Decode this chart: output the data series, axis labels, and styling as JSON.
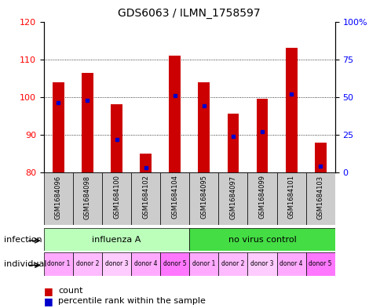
{
  "title": "GDS6063 / ILMN_1758597",
  "samples": [
    "GSM1684096",
    "GSM1684098",
    "GSM1684100",
    "GSM1684102",
    "GSM1684104",
    "GSM1684095",
    "GSM1684097",
    "GSM1684099",
    "GSM1684101",
    "GSM1684103"
  ],
  "count_values": [
    104,
    106.5,
    98,
    85,
    111,
    104,
    95.5,
    99.5,
    113,
    88
  ],
  "count_base": 80,
  "percentile_values": [
    46,
    48,
    22,
    3,
    51,
    44,
    24,
    27,
    52,
    4
  ],
  "infection_groups": [
    {
      "label": "influenza A",
      "start": 0,
      "end": 5,
      "color": "#bbffbb"
    },
    {
      "label": "no virus control",
      "start": 5,
      "end": 10,
      "color": "#44dd44"
    }
  ],
  "individual_labels": [
    "donor 1",
    "donor 2",
    "donor 3",
    "donor 4",
    "donor 5",
    "donor 1",
    "donor 2",
    "donor 3",
    "donor 4",
    "donor 5"
  ],
  "individual_colors": [
    "#ffaaff",
    "#ffbbff",
    "#ffccff",
    "#ffaaff",
    "#ff77ff",
    "#ffaaff",
    "#ffbbff",
    "#ffccff",
    "#ffaaff",
    "#ff77ff"
  ],
  "ylim_left": [
    80,
    120
  ],
  "ylim_right": [
    0,
    100
  ],
  "yticks_left": [
    80,
    90,
    100,
    110,
    120
  ],
  "yticks_right": [
    0,
    25,
    50,
    75,
    100
  ],
  "bar_color": "#cc0000",
  "dot_color": "#0000cc",
  "bar_width": 0.4
}
